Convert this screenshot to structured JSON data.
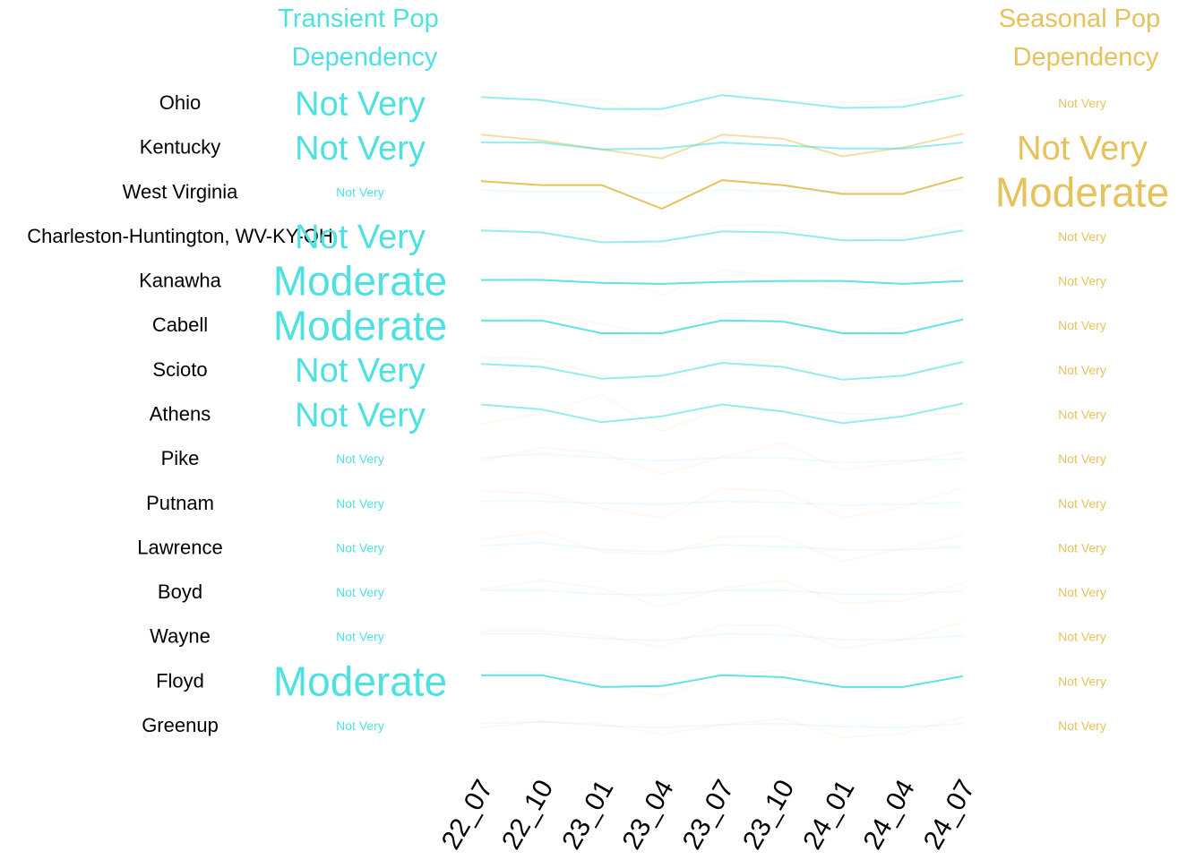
{
  "chart_data": {
    "type": "line",
    "title": "",
    "xlabel": "",
    "ylabel": "",
    "x": [
      "22_07",
      "22_10",
      "23_01",
      "23_04",
      "23_07",
      "23_10",
      "24_01",
      "24_04",
      "24_07"
    ],
    "left_header": [
      "Transient Pop",
      "Dependency"
    ],
    "right_header": [
      "Seasonal Pop",
      "Dependency"
    ],
    "colors": {
      "transient": "#4fe0e0",
      "seasonal": "#e6c25c",
      "region_label": "#000000"
    },
    "level_sizes": {
      "Not Very": 38,
      "Moderate": 46
    },
    "rows": [
      {
        "region": "Ohio",
        "transient_label": "Not Very",
        "transient_emphasis": 0.6,
        "seasonal_label": "Not Very",
        "seasonal_emphasis": 0.0,
        "transient": [
          0.3,
          0.15,
          -0.3,
          -0.3,
          0.4,
          0.1,
          -0.25,
          -0.2,
          0.4
        ],
        "seasonal": [
          0.55,
          0.15,
          0.15,
          -0.7,
          0.65,
          0.1,
          0.0,
          0.15,
          0.6
        ]
      },
      {
        "region": "Kentucky",
        "transient_label": "Not Very",
        "transient_emphasis": 0.6,
        "seasonal_label": "Not Very",
        "seasonal_emphasis": 0.5,
        "transient": [
          0.25,
          0.25,
          -0.1,
          -0.05,
          0.25,
          0.1,
          -0.05,
          -0.05,
          0.25
        ],
        "seasonal": [
          0.65,
          0.35,
          -0.1,
          -0.55,
          0.65,
          0.45,
          -0.45,
          0.0,
          0.7
        ]
      },
      {
        "region": "West Virginia",
        "transient_label": "Not Very",
        "transient_emphasis": 0.0,
        "seasonal_label": "Moderate",
        "seasonal_emphasis": 1.0,
        "transient": [
          0.1,
          0.0,
          0.0,
          -0.05,
          0.1,
          0.05,
          0.0,
          0.0,
          0.1
        ],
        "seasonal": [
          0.55,
          0.35,
          0.35,
          -0.85,
          0.6,
          0.35,
          -0.1,
          -0.1,
          0.75
        ]
      },
      {
        "region": "Charleston-Huntington, WV-KY-OH",
        "transient_label": "Not Very",
        "transient_emphasis": 0.6,
        "seasonal_label": "Not Very",
        "seasonal_emphasis": 0.0,
        "transient": [
          0.3,
          0.2,
          -0.3,
          -0.25,
          0.25,
          0.2,
          -0.2,
          -0.2,
          0.3
        ],
        "seasonal": [
          0.5,
          0.2,
          0.0,
          -0.55,
          0.6,
          0.55,
          -0.3,
          0.0,
          0.7
        ]
      },
      {
        "region": "Kanawha",
        "transient_label": "Moderate",
        "transient_emphasis": 0.9,
        "seasonal_label": "Not Very",
        "seasonal_emphasis": 0.0,
        "transient": [
          0.05,
          0.05,
          -0.1,
          -0.15,
          -0.05,
          0.0,
          0.0,
          -0.15,
          0.0
        ],
        "seasonal": [
          0.0,
          0.15,
          0.3,
          -0.75,
          0.55,
          0.2,
          -0.45,
          -0.25,
          0.7
        ]
      },
      {
        "region": "Cabell",
        "transient_label": "Moderate",
        "transient_emphasis": 0.9,
        "seasonal_label": "Not Very",
        "seasonal_emphasis": 0.0,
        "transient": [
          0.25,
          0.25,
          -0.4,
          -0.4,
          0.25,
          0.2,
          -0.4,
          -0.4,
          0.3
        ],
        "seasonal": [
          0.35,
          0.5,
          0.1,
          -0.55,
          0.6,
          0.55,
          -0.45,
          -0.1,
          0.65
        ]
      },
      {
        "region": "Scioto",
        "transient_label": "Not Very",
        "transient_emphasis": 0.6,
        "seasonal_label": "Not Very",
        "seasonal_emphasis": 0.0,
        "transient": [
          0.3,
          0.15,
          -0.45,
          -0.3,
          0.35,
          0.15,
          -0.5,
          -0.3,
          0.4
        ],
        "seasonal": [
          0.65,
          0.55,
          -0.3,
          -0.65,
          0.5,
          0.45,
          -0.75,
          -0.35,
          0.55
        ]
      },
      {
        "region": "Athens",
        "transient_label": "Not Very",
        "transient_emphasis": 0.6,
        "seasonal_label": "Not Very",
        "seasonal_emphasis": 0.0,
        "transient": [
          0.5,
          0.25,
          -0.4,
          -0.1,
          0.5,
          0.15,
          -0.45,
          -0.1,
          0.55
        ],
        "seasonal": [
          -0.5,
          0.05,
          1.0,
          -0.85,
          0.3,
          0.15,
          0.05,
          -0.05,
          0.05
        ]
      },
      {
        "region": "Pike",
        "transient_label": "Not Very",
        "transient_emphasis": 0.0,
        "seasonal_label": "Not Very",
        "seasonal_emphasis": 0.0,
        "transient": [
          0.05,
          0.25,
          0.05,
          -0.1,
          0.05,
          0.05,
          -0.2,
          -0.1,
          0.0
        ],
        "seasonal": [
          -0.1,
          0.55,
          0.3,
          -0.8,
          0.1,
          0.8,
          -0.55,
          -0.2,
          0.35
        ]
      },
      {
        "region": "Putnam",
        "transient_label": "Not Very",
        "transient_emphasis": 0.0,
        "seasonal_label": "Not Very",
        "seasonal_emphasis": 0.0,
        "transient": [
          0.1,
          0.1,
          0.0,
          -0.05,
          0.1,
          0.05,
          -0.1,
          -0.05,
          0.05
        ],
        "seasonal": [
          0.6,
          0.5,
          -0.25,
          -0.75,
          0.75,
          0.6,
          -0.75,
          -0.2,
          0.8
        ]
      },
      {
        "region": "Lawrence",
        "transient_label": "Not Very",
        "transient_emphasis": 0.0,
        "seasonal_label": "Not Very",
        "seasonal_emphasis": 0.0,
        "transient": [
          0.1,
          0.25,
          -0.1,
          -0.2,
          0.15,
          0.05,
          -0.1,
          -0.1,
          0.05
        ],
        "seasonal": [
          0.4,
          0.8,
          -0.2,
          -0.35,
          0.55,
          0.55,
          -0.7,
          -0.05,
          0.65
        ]
      },
      {
        "region": "Boyd",
        "transient_label": "Not Very",
        "transient_emphasis": 0.0,
        "seasonal_label": "Not Very",
        "seasonal_emphasis": 0.0,
        "transient": [
          0.1,
          0.1,
          -0.1,
          -0.15,
          0.1,
          0.1,
          -0.1,
          -0.1,
          0.05
        ],
        "seasonal": [
          0.15,
          0.6,
          0.2,
          -0.75,
          0.2,
          0.6,
          -0.55,
          -0.45,
          0.45
        ]
      },
      {
        "region": "Wayne",
        "transient_label": "Not Very",
        "transient_emphasis": 0.0,
        "seasonal_label": "Not Very",
        "seasonal_emphasis": 0.0,
        "transient": [
          0.15,
          0.15,
          -0.1,
          -0.2,
          0.15,
          0.1,
          -0.15,
          -0.15,
          0.05
        ],
        "seasonal": [
          0.3,
          0.3,
          0.05,
          -0.55,
          0.6,
          0.55,
          -0.6,
          -0.15,
          0.75
        ]
      },
      {
        "region": "Floyd",
        "transient_label": "Moderate",
        "transient_emphasis": 0.9,
        "seasonal_label": "Not Very",
        "seasonal_emphasis": 0.0,
        "transient": [
          0.3,
          0.3,
          -0.3,
          -0.25,
          0.3,
          0.2,
          -0.3,
          -0.3,
          0.25
        ],
        "seasonal": [
          0.5,
          0.45,
          -0.2,
          -0.75,
          0.3,
          0.55,
          -0.55,
          -0.35,
          0.55
        ]
      },
      {
        "region": "Greenup",
        "transient_label": "Not Very",
        "transient_emphasis": 0.0,
        "seasonal_label": "Not Very",
        "seasonal_emphasis": 0.0,
        "transient": [
          0.1,
          0.2,
          0.0,
          -0.1,
          0.05,
          0.1,
          -0.05,
          -0.1,
          0.1
        ],
        "seasonal": [
          -0.1,
          0.2,
          0.1,
          -0.45,
          0.05,
          0.35,
          -0.6,
          -0.4,
          0.45
        ]
      }
    ]
  }
}
